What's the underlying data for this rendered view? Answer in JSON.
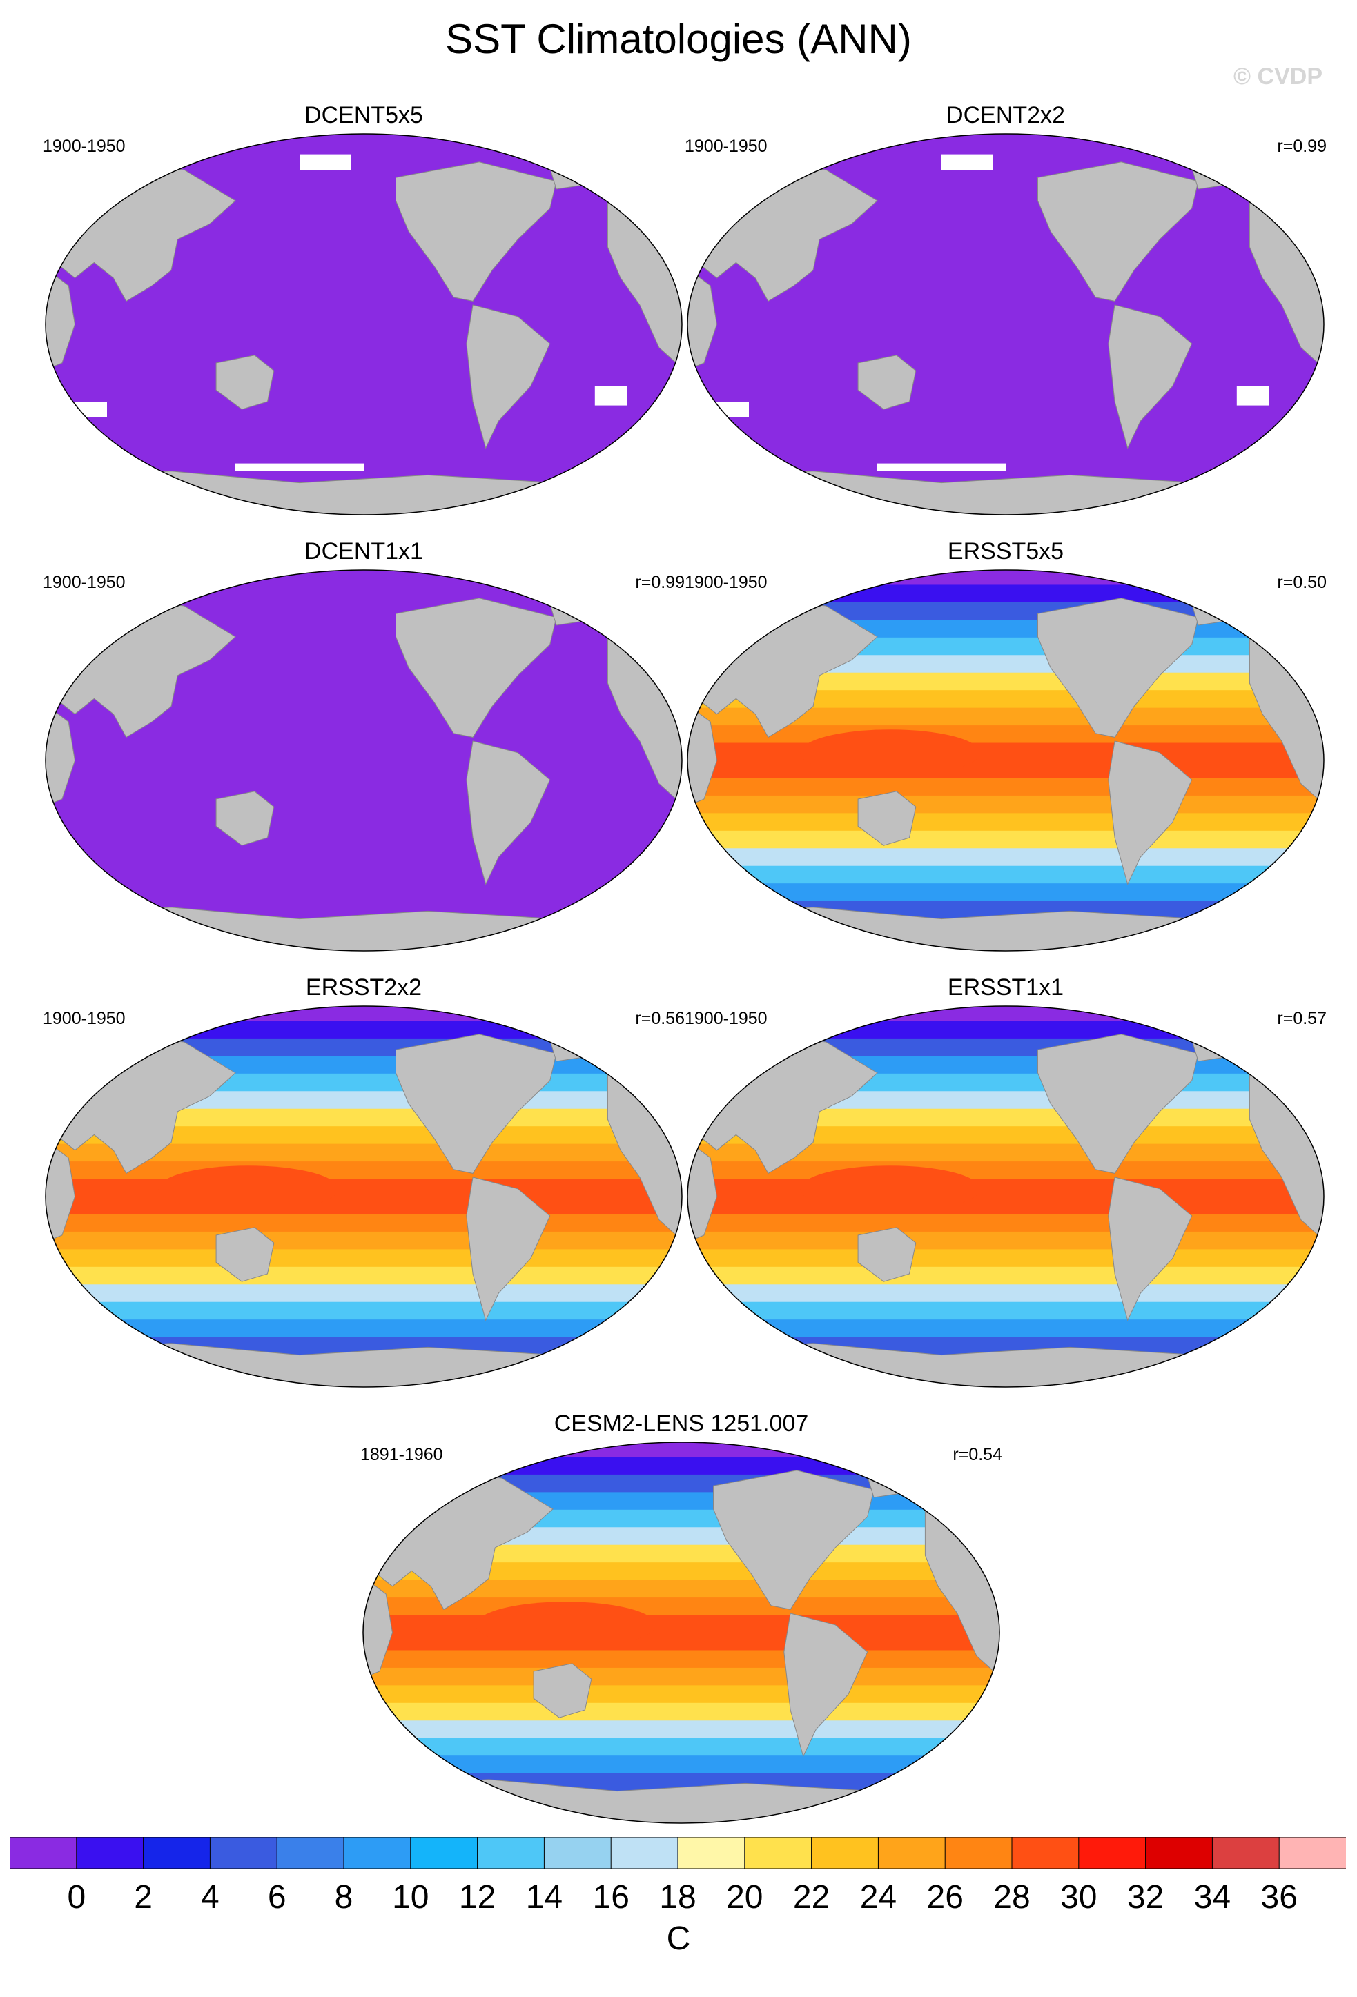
{
  "title": "SST Climatologies (ANN)",
  "copyright": "© CVDP",
  "panels": [
    {
      "id": "dcent5x5",
      "title": "DCENT5x5",
      "period": "1900-1950",
      "corr": "",
      "style": "mask"
    },
    {
      "id": "dcent2x2",
      "title": "DCENT2x2",
      "period": "1900-1950",
      "corr": "r=0.99",
      "style": "mask"
    },
    {
      "id": "dcent1x1",
      "title": "DCENT1x1",
      "period": "1900-1950",
      "corr": "r=0.99",
      "style": "mask-full"
    },
    {
      "id": "ersst5x5",
      "title": "ERSST5x5",
      "period": "1900-1950",
      "corr": "r=0.50",
      "style": "sst"
    },
    {
      "id": "ersst2x2",
      "title": "ERSST2x2",
      "period": "1900-1950",
      "corr": "r=0.56",
      "style": "sst"
    },
    {
      "id": "ersst1x1",
      "title": "ERSST1x1",
      "period": "1900-1950",
      "corr": "r=0.57",
      "style": "sst"
    },
    {
      "id": "cesm2",
      "title": "CESM2-LENS 1251.007",
      "period": "1891-1960",
      "corr": "r=0.54",
      "style": "sst"
    }
  ],
  "colorbar": {
    "colors": [
      "#8a2be2",
      "#3a10f0",
      "#1525ea",
      "#3a5be0",
      "#3a80ea",
      "#2d9cf5",
      "#14b4fa",
      "#4ec7f7",
      "#96d2f0",
      "#bfe1f5",
      "#fff7a8",
      "#ffe14d",
      "#ffc21f",
      "#ffa41a",
      "#ff8513",
      "#ff5014",
      "#ff1a0a",
      "#dd0000",
      "#dc4040",
      "#ffb4b4"
    ],
    "ticks": [
      "0",
      "2",
      "4",
      "6",
      "8",
      "10",
      "12",
      "14",
      "16",
      "18",
      "20",
      "22",
      "24",
      "26",
      "28",
      "30",
      "32",
      "34",
      "36"
    ],
    "units": "C"
  },
  "land_color": "#c0c0c0",
  "missing_color": "#ffffff"
}
